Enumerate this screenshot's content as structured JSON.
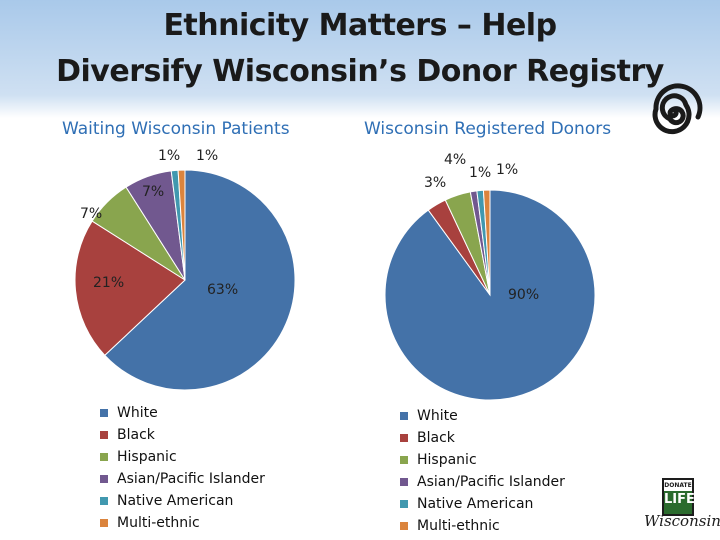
{
  "title": {
    "line1": "Ethnicity Matters – Help",
    "line2": "Diversify Wisconsin’s Donor Registry"
  },
  "chart_data": [
    {
      "type": "pie",
      "title": "Waiting Wisconsin Patients",
      "categories": [
        "White",
        "Black",
        "Hispanic",
        "Asian/Pacific Islander",
        "Native American",
        "Multi-ethnic"
      ],
      "values": [
        63,
        21,
        7,
        7,
        1,
        1
      ],
      "labels": [
        "63%",
        "21%",
        "7%",
        "7%",
        "1%",
        "1%"
      ],
      "colors": [
        "#4472a8",
        "#a8413e",
        "#89a54e",
        "#71588f",
        "#4198af",
        "#db843d"
      ],
      "legend_position": "bottom-left"
    },
    {
      "type": "pie",
      "title": "Wisconsin Registered Donors",
      "categories": [
        "White",
        "Black",
        "Hispanic",
        "Asian/Pacific Islander",
        "Native American",
        "Multi-ethnic"
      ],
      "values": [
        90,
        3,
        4,
        1,
        1,
        1
      ],
      "labels": [
        "90%",
        "3%",
        "4%",
        "1%",
        "1%",
        ""
      ],
      "colors": [
        "#4472a8",
        "#a8413e",
        "#89a54e",
        "#71588f",
        "#4198af",
        "#db843d"
      ],
      "legend_position": "bottom-left"
    }
  ],
  "logo": {
    "top_text": "DONATE",
    "mid_text": "LIFE",
    "script_text": "Wisconsin"
  },
  "spiral_icon": "spiral-icon"
}
